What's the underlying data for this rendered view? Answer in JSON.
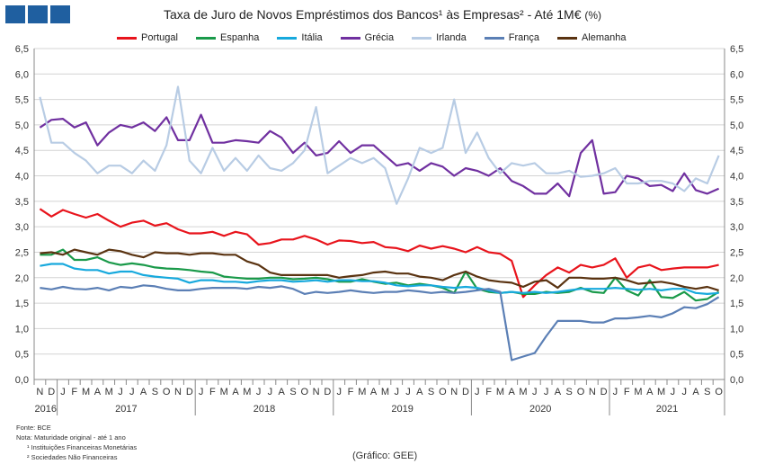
{
  "header": {
    "title": "Taxa de Juro de Novos Empréstimos dos Bancos¹ às Empresas² - Até 1M€",
    "title_unit": "(%)"
  },
  "footer": {
    "fonte": "Fonte: BCE",
    "nota": "Nota: Maturidade original - até 1 ano",
    "nota1": "¹ Instituições Financeiras Monetárias",
    "nota2": "² Sociedades Não Financeiras",
    "credit": "(Gráfico: GEE)"
  },
  "chart_data": {
    "type": "line",
    "title": "Taxa de Juro de Novos Empréstimos dos Bancos¹ às Empresas² - Até 1M€ (%)",
    "ylim": [
      0,
      6.5
    ],
    "yticks": [
      "0,0",
      "0,5",
      "1,0",
      "1,5",
      "2,0",
      "2,5",
      "3,0",
      "3,5",
      "4,0",
      "4,5",
      "5,0",
      "5,5",
      "6,0",
      "6,5"
    ],
    "grid": "horizontal",
    "legend_position": "top",
    "month_labels": [
      "N",
      "D",
      "J",
      "F",
      "M",
      "A",
      "M",
      "J",
      "J",
      "A",
      "S",
      "O",
      "N",
      "D",
      "J",
      "F",
      "M",
      "A",
      "M",
      "J",
      "J",
      "A",
      "S",
      "O",
      "N",
      "D",
      "J",
      "F",
      "M",
      "A",
      "M",
      "J",
      "J",
      "A",
      "S",
      "O",
      "N",
      "D",
      "J",
      "F",
      "M",
      "A",
      "M",
      "J",
      "J",
      "A",
      "S",
      "O",
      "N",
      "D",
      "J",
      "F",
      "M",
      "A",
      "M",
      "J",
      "J",
      "A",
      "S",
      "O"
    ],
    "year_labels": [
      {
        "label": "2016",
        "start": 0,
        "end": 1
      },
      {
        "label": "2017",
        "start": 2,
        "end": 13
      },
      {
        "label": "2018",
        "start": 14,
        "end": 25
      },
      {
        "label": "2019",
        "start": 26,
        "end": 37
      },
      {
        "label": "2020",
        "start": 38,
        "end": 49
      },
      {
        "label": "2021",
        "start": 50,
        "end": 59
      }
    ],
    "series": [
      {
        "name": "Portugal",
        "color": "#e8141c",
        "values": [
          3.35,
          3.2,
          3.33,
          3.25,
          3.18,
          3.25,
          3.12,
          3.0,
          3.08,
          3.12,
          3.02,
          3.07,
          2.95,
          2.87,
          2.87,
          2.9,
          2.82,
          2.9,
          2.85,
          2.65,
          2.68,
          2.75,
          2.75,
          2.82,
          2.75,
          2.65,
          2.73,
          2.72,
          2.68,
          2.7,
          2.6,
          2.58,
          2.52,
          2.63,
          2.57,
          2.62,
          2.57,
          2.5,
          2.6,
          2.5,
          2.47,
          2.33,
          1.62,
          1.85,
          2.05,
          2.2,
          2.1,
          2.25,
          2.2,
          2.25,
          2.38,
          2.0,
          2.2,
          2.25,
          2.15,
          2.18,
          2.2,
          2.2,
          2.2,
          2.25
        ]
      },
      {
        "name": "Espanha",
        "color": "#1a9a4a",
        "values": [
          2.45,
          2.45,
          2.55,
          2.35,
          2.35,
          2.4,
          2.3,
          2.25,
          2.28,
          2.25,
          2.2,
          2.18,
          2.17,
          2.15,
          2.12,
          2.1,
          2.02,
          2.0,
          1.98,
          1.98,
          2.0,
          2.0,
          1.97,
          1.98,
          2.0,
          1.97,
          1.92,
          1.92,
          1.97,
          1.92,
          1.88,
          1.9,
          1.85,
          1.88,
          1.85,
          1.8,
          1.7,
          2.12,
          1.78,
          1.72,
          1.7,
          1.72,
          1.68,
          1.68,
          1.72,
          1.7,
          1.72,
          1.8,
          1.72,
          1.7,
          2.0,
          1.75,
          1.65,
          1.95,
          1.62,
          1.6,
          1.72,
          1.55,
          1.58,
          1.72
        ]
      },
      {
        "name": "Itália",
        "color": "#17a9dd",
        "values": [
          2.23,
          2.27,
          2.27,
          2.18,
          2.15,
          2.15,
          2.08,
          2.12,
          2.12,
          2.05,
          2.02,
          2.0,
          1.98,
          1.9,
          1.95,
          1.95,
          1.92,
          1.92,
          1.9,
          1.93,
          1.95,
          1.95,
          1.92,
          1.93,
          1.95,
          1.92,
          1.95,
          1.95,
          1.93,
          1.93,
          1.9,
          1.85,
          1.83,
          1.85,
          1.85,
          1.82,
          1.8,
          1.82,
          1.8,
          1.75,
          1.7,
          1.72,
          1.7,
          1.72,
          1.7,
          1.72,
          1.75,
          1.78,
          1.78,
          1.78,
          1.8,
          1.78,
          1.76,
          1.78,
          1.75,
          1.78,
          1.78,
          1.7,
          1.68,
          1.7
        ]
      },
      {
        "name": "Grécia",
        "color": "#7030a0",
        "values": [
          4.95,
          5.1,
          5.12,
          4.95,
          5.05,
          4.6,
          4.85,
          5.0,
          4.95,
          5.05,
          4.88,
          5.15,
          4.7,
          4.7,
          5.2,
          4.65,
          4.65,
          4.7,
          4.68,
          4.65,
          4.88,
          4.75,
          4.45,
          4.65,
          4.4,
          4.45,
          4.68,
          4.45,
          4.6,
          4.6,
          4.4,
          4.2,
          4.25,
          4.1,
          4.25,
          4.18,
          4.0,
          4.15,
          4.1,
          4.0,
          4.15,
          3.9,
          3.8,
          3.65,
          3.65,
          3.85,
          3.6,
          4.45,
          4.7,
          3.65,
          3.68,
          4.0,
          3.95,
          3.8,
          3.82,
          3.7,
          4.05,
          3.72,
          3.65,
          3.75
        ]
      },
      {
        "name": "Irlanda",
        "color": "#b8cce4",
        "values": [
          5.55,
          4.65,
          4.65,
          4.45,
          4.3,
          4.05,
          4.2,
          4.2,
          4.05,
          4.3,
          4.1,
          4.6,
          5.75,
          4.3,
          4.05,
          4.55,
          4.1,
          4.35,
          4.1,
          4.4,
          4.15,
          4.1,
          4.25,
          4.5,
          5.35,
          4.05,
          4.2,
          4.35,
          4.25,
          4.35,
          4.15,
          3.45,
          3.95,
          4.55,
          4.45,
          4.55,
          5.5,
          4.45,
          4.85,
          4.35,
          4.05,
          4.25,
          4.2,
          4.25,
          4.05,
          4.05,
          4.1,
          3.98,
          4.0,
          4.05,
          4.15,
          3.85,
          3.85,
          3.9,
          3.9,
          3.85,
          3.7,
          3.95,
          3.85,
          4.4
        ]
      },
      {
        "name": "França",
        "color": "#5b7fb5",
        "values": [
          1.8,
          1.77,
          1.82,
          1.78,
          1.77,
          1.8,
          1.75,
          1.82,
          1.8,
          1.85,
          1.83,
          1.78,
          1.75,
          1.75,
          1.78,
          1.8,
          1.8,
          1.8,
          1.78,
          1.82,
          1.8,
          1.83,
          1.78,
          1.68,
          1.72,
          1.7,
          1.72,
          1.75,
          1.72,
          1.7,
          1.72,
          1.72,
          1.75,
          1.73,
          1.7,
          1.72,
          1.7,
          1.72,
          1.75,
          1.78,
          1.72,
          0.38,
          0.45,
          0.52,
          0.85,
          1.15,
          1.15,
          1.15,
          1.12,
          1.12,
          1.2,
          1.2,
          1.22,
          1.25,
          1.22,
          1.3,
          1.42,
          1.4,
          1.48,
          1.62
        ]
      },
      {
        "name": "Alemanha",
        "color": "#5a3311",
        "values": [
          2.48,
          2.5,
          2.45,
          2.55,
          2.5,
          2.45,
          2.55,
          2.52,
          2.45,
          2.4,
          2.5,
          2.48,
          2.48,
          2.45,
          2.48,
          2.48,
          2.45,
          2.45,
          2.32,
          2.25,
          2.1,
          2.05,
          2.05,
          2.05,
          2.05,
          2.05,
          2.0,
          2.03,
          2.05,
          2.1,
          2.12,
          2.08,
          2.08,
          2.02,
          2.0,
          1.95,
          2.05,
          2.12,
          2.02,
          1.95,
          1.92,
          1.9,
          1.82,
          1.92,
          1.95,
          1.8,
          2.0,
          2.0,
          1.98,
          1.98,
          2.0,
          1.95,
          1.88,
          1.9,
          1.92,
          1.88,
          1.82,
          1.78,
          1.82,
          1.75
        ]
      }
    ]
  }
}
